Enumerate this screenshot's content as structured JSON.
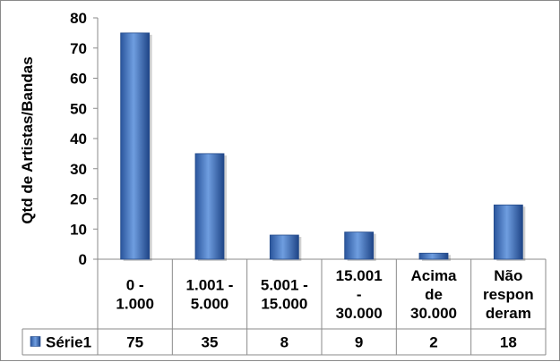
{
  "chart_data": {
    "type": "bar",
    "ylabel": "Qtd de Artistas/Bandas",
    "ylim": [
      0,
      80
    ],
    "yticks": [
      0,
      10,
      20,
      30,
      40,
      50,
      60,
      70,
      80
    ],
    "categories": [
      [
        "0 -",
        "1.000"
      ],
      [
        "1.001 -",
        "5.000"
      ],
      [
        "5.001 -",
        "15.000"
      ],
      [
        "15.001",
        "-",
        "30.000"
      ],
      [
        "Acima",
        "de",
        "30.000"
      ],
      [
        "Não",
        "respon",
        "deram"
      ]
    ],
    "series": [
      {
        "name": "Série1",
        "values": [
          75,
          35,
          8,
          9,
          2,
          18
        ],
        "color": "#3c6fc0"
      }
    ],
    "data_table": true,
    "legend": "data-table-left",
    "grid": false
  }
}
